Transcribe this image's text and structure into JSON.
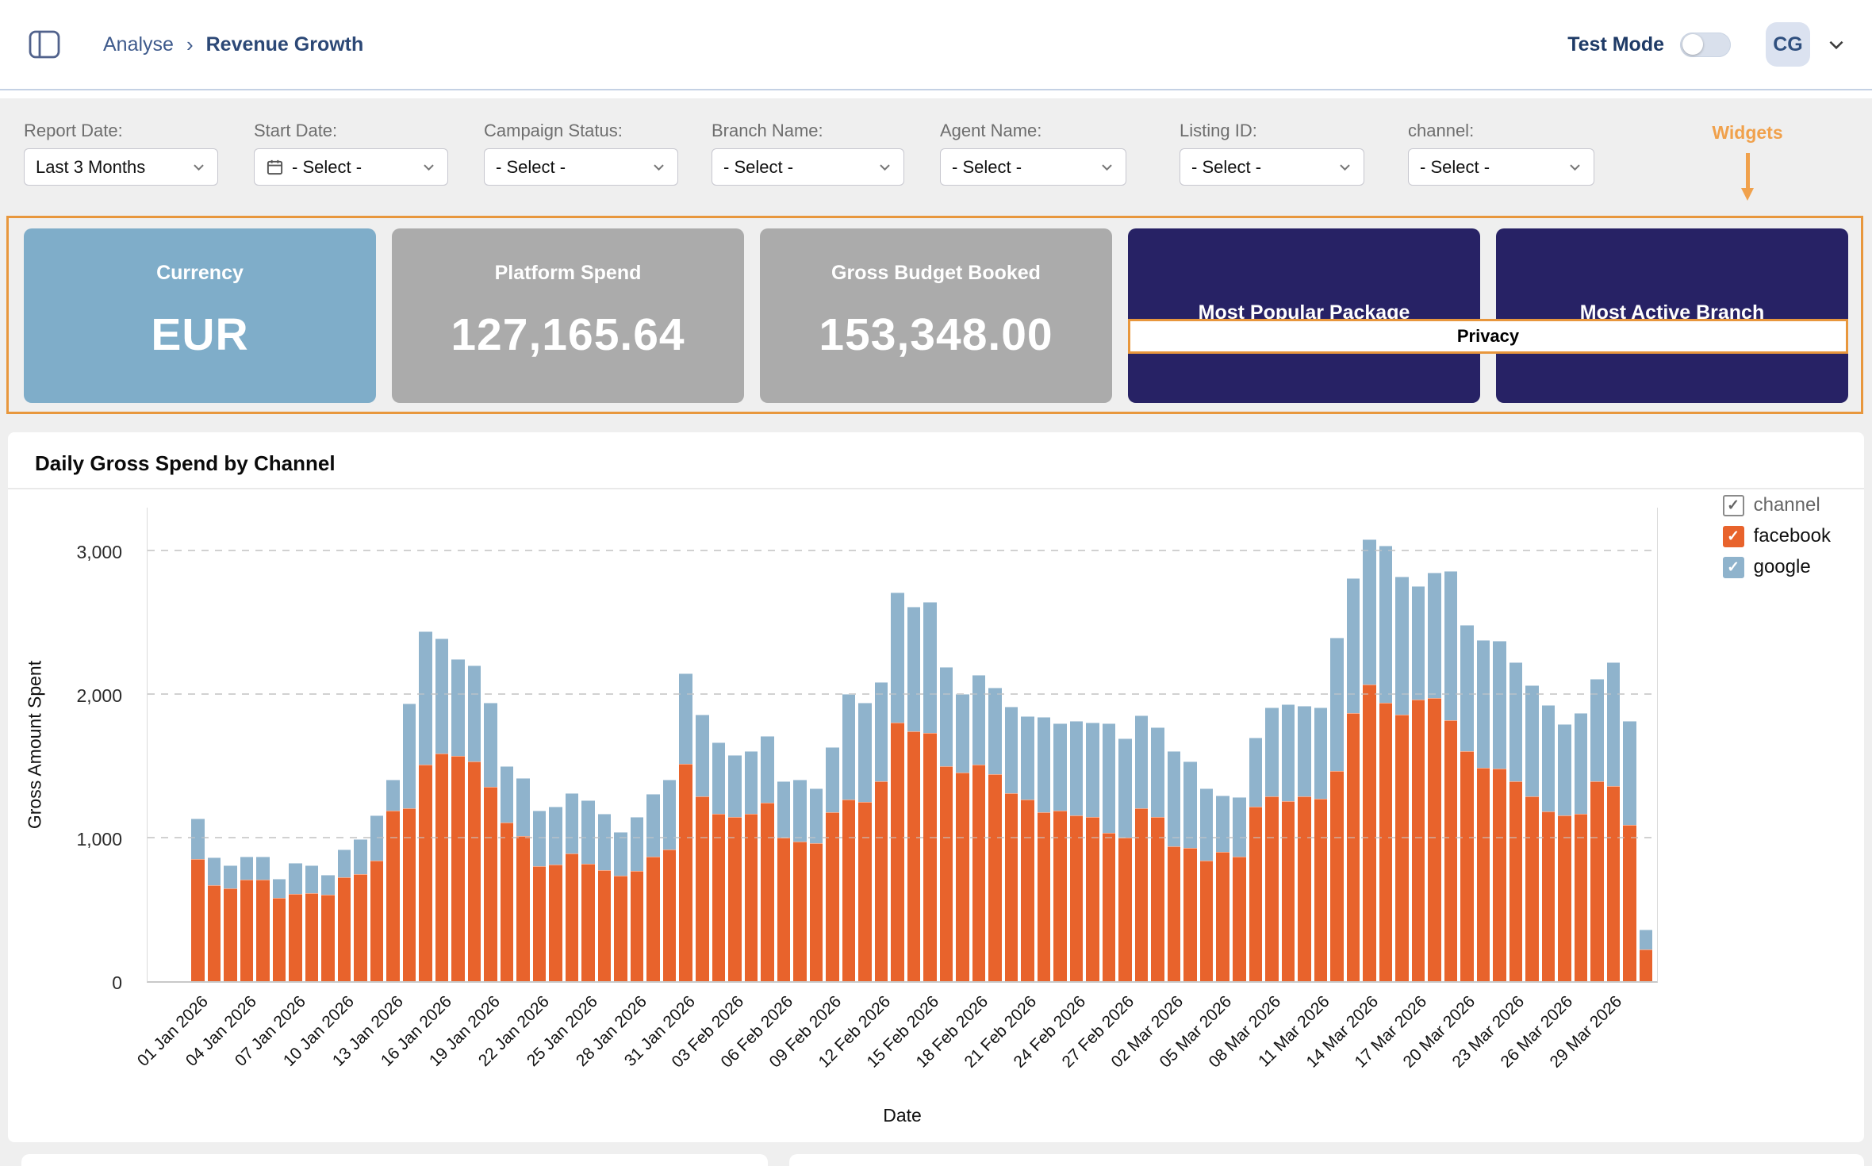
{
  "header": {
    "breadcrumb": {
      "parent": "Analyse",
      "separator": "›",
      "current": "Revenue Growth"
    },
    "test_mode_label": "Test Mode",
    "avatar_initials": "CG"
  },
  "filters": {
    "items": [
      {
        "key": "report-date",
        "label": "Report Date:",
        "value": "Last 3 Months"
      },
      {
        "key": "start-date",
        "label": "Start Date:",
        "value": "- Select -",
        "icon": "calendar"
      },
      {
        "key": "campaign-status",
        "label": "Campaign Status:",
        "value": "- Select -"
      },
      {
        "key": "branch-name",
        "label": "Branch Name:",
        "value": "- Select -"
      },
      {
        "key": "agent-name",
        "label": "Agent Name:",
        "value": "- Select -"
      },
      {
        "key": "listing-id",
        "label": "Listing ID:",
        "value": "- Select -"
      },
      {
        "key": "channel",
        "label": "channel:",
        "value": "- Select -"
      }
    ]
  },
  "annotation": {
    "widgets_label": "Widgets",
    "privacy_label": "Privacy",
    "label_color": "#F0A14C",
    "highlight_color": "#E8973D"
  },
  "widgets": [
    {
      "key": "currency",
      "title": "Currency",
      "value": "EUR",
      "bg": "#7FADC9"
    },
    {
      "key": "platform-spend",
      "title": "Platform Spend",
      "value": "127,165.64",
      "bg": "#ABABAB"
    },
    {
      "key": "gross-budget-booked",
      "title": "Gross Budget Booked",
      "value": "153,348.00",
      "bg": "#ABABAB"
    },
    {
      "key": "most-popular-package",
      "title": "Most Popular Package",
      "value": "",
      "bg": "#272265"
    },
    {
      "key": "most-active-branch",
      "title": "Most Active Branch",
      "value": "",
      "bg": "#272265"
    }
  ],
  "chart_data": {
    "type": "bar",
    "stacked": true,
    "title": "Daily Gross Spend by Channel",
    "xlabel": "Date",
    "ylabel": "Gross Amount Spent",
    "ylim": [
      0,
      3310
    ],
    "grid": true,
    "yticks": [
      0,
      1000,
      2000,
      3000
    ],
    "ytick_labels": [
      "0",
      "1,000",
      "2,000",
      "3,000"
    ],
    "x_tick_every": 3,
    "x": [
      "01 Jan 2026",
      "02 Jan 2026",
      "03 Jan 2026",
      "04 Jan 2026",
      "05 Jan 2026",
      "06 Jan 2026",
      "07 Jan 2026",
      "08 Jan 2026",
      "09 Jan 2026",
      "10 Jan 2026",
      "11 Jan 2026",
      "12 Jan 2026",
      "13 Jan 2026",
      "14 Jan 2026",
      "15 Jan 2026",
      "16 Jan 2026",
      "17 Jan 2026",
      "18 Jan 2026",
      "19 Jan 2026",
      "20 Jan 2026",
      "21 Jan 2026",
      "22 Jan 2026",
      "23 Jan 2026",
      "24 Jan 2026",
      "25 Jan 2026",
      "26 Jan 2026",
      "27 Jan 2026",
      "28 Jan 2026",
      "29 Jan 2026",
      "30 Jan 2026",
      "31 Jan 2026",
      "01 Feb 2026",
      "02 Feb 2026",
      "03 Feb 2026",
      "04 Feb 2026",
      "05 Feb 2026",
      "06 Feb 2026",
      "07 Feb 2026",
      "08 Feb 2026",
      "09 Feb 2026",
      "10 Feb 2026",
      "11 Feb 2026",
      "12 Feb 2026",
      "13 Feb 2026",
      "14 Feb 2026",
      "15 Feb 2026",
      "16 Feb 2026",
      "17 Feb 2026",
      "18 Feb 2026",
      "19 Feb 2026",
      "20 Feb 2026",
      "21 Feb 2026",
      "22 Feb 2026",
      "23 Feb 2026",
      "24 Feb 2026",
      "25 Feb 2026",
      "26 Feb 2026",
      "27 Feb 2026",
      "28 Feb 2026",
      "01 Mar 2026",
      "02 Mar 2026",
      "03 Mar 2026",
      "04 Mar 2026",
      "05 Mar 2026",
      "06 Mar 2026",
      "07 Mar 2026",
      "08 Mar 2026",
      "09 Mar 2026",
      "10 Mar 2026",
      "11 Mar 2026",
      "12 Mar 2026",
      "13 Mar 2026",
      "14 Mar 2026",
      "15 Mar 2026",
      "16 Mar 2026",
      "17 Mar 2026",
      "18 Mar 2026",
      "19 Mar 2026",
      "20 Mar 2026",
      "21 Mar 2026",
      "22 Mar 2026",
      "23 Mar 2026",
      "24 Mar 2026",
      "25 Mar 2026",
      "26 Mar 2026",
      "27 Mar 2026",
      "28 Mar 2026",
      "29 Mar 2026",
      "30 Mar 2026",
      "31 Mar 2026"
    ],
    "series": [
      {
        "name": "facebook",
        "color": "#E8632C",
        "values": [
          850,
          670,
          645,
          710,
          705,
          580,
          610,
          615,
          605,
          725,
          745,
          840,
          1190,
          1205,
          1510,
          1585,
          1570,
          1530,
          1355,
          1105,
          1010,
          800,
          810,
          890,
          820,
          775,
          735,
          770,
          870,
          915,
          1515,
          1285,
          1165,
          1145,
          1165,
          1245,
          1000,
          975,
          960,
          1175,
          1265,
          1250,
          1390,
          1800,
          1740,
          1730,
          1495,
          1455,
          1510,
          1440,
          1310,
          1265,
          1175,
          1190,
          1155,
          1145,
          1035,
          1000,
          1205,
          1145,
          940,
          930,
          840,
          900,
          865,
          1215,
          1285,
          1255,
          1285,
          1270,
          1465,
          1870,
          2065,
          1940,
          1855,
          1960,
          1975,
          1820,
          1600,
          1485,
          1480,
          1395,
          1285,
          1180,
          1155,
          1165,
          1390,
          1360,
          1090,
          220
        ]
      },
      {
        "name": "google",
        "color": "#8FB3CC",
        "values": [
          280,
          190,
          160,
          160,
          165,
          135,
          215,
          190,
          135,
          190,
          245,
          315,
          215,
          730,
          925,
          800,
          675,
          670,
          585,
          390,
          405,
          390,
          405,
          420,
          440,
          390,
          305,
          375,
          435,
          490,
          630,
          570,
          500,
          430,
          440,
          465,
          390,
          430,
          380,
          455,
          735,
          690,
          695,
          905,
          870,
          910,
          695,
          545,
          620,
          605,
          600,
          580,
          665,
          605,
          655,
          655,
          760,
          690,
          645,
          625,
          665,
          600,
          500,
          395,
          415,
          480,
          620,
          675,
          630,
          635,
          925,
          935,
          1015,
          1095,
          965,
          790,
          870,
          1035,
          880,
          890,
          890,
          825,
          775,
          740,
          635,
          705,
          715,
          860,
          725,
          140
        ]
      }
    ],
    "legend": {
      "position": "top-right",
      "items": [
        {
          "label": "channel",
          "swatch": "#FFFFFF",
          "border": "#8A8A8A",
          "check": "#666666",
          "label_color": "#666666"
        },
        {
          "label": "facebook",
          "swatch": "#E8632C",
          "border": "#E8632C",
          "check": "#FFFFFF",
          "label_color": "#111111"
        },
        {
          "label": "google",
          "swatch": "#8FB3CC",
          "border": "#8FB3CC",
          "check": "#FFFFFF",
          "label_color": "#111111"
        }
      ]
    }
  }
}
